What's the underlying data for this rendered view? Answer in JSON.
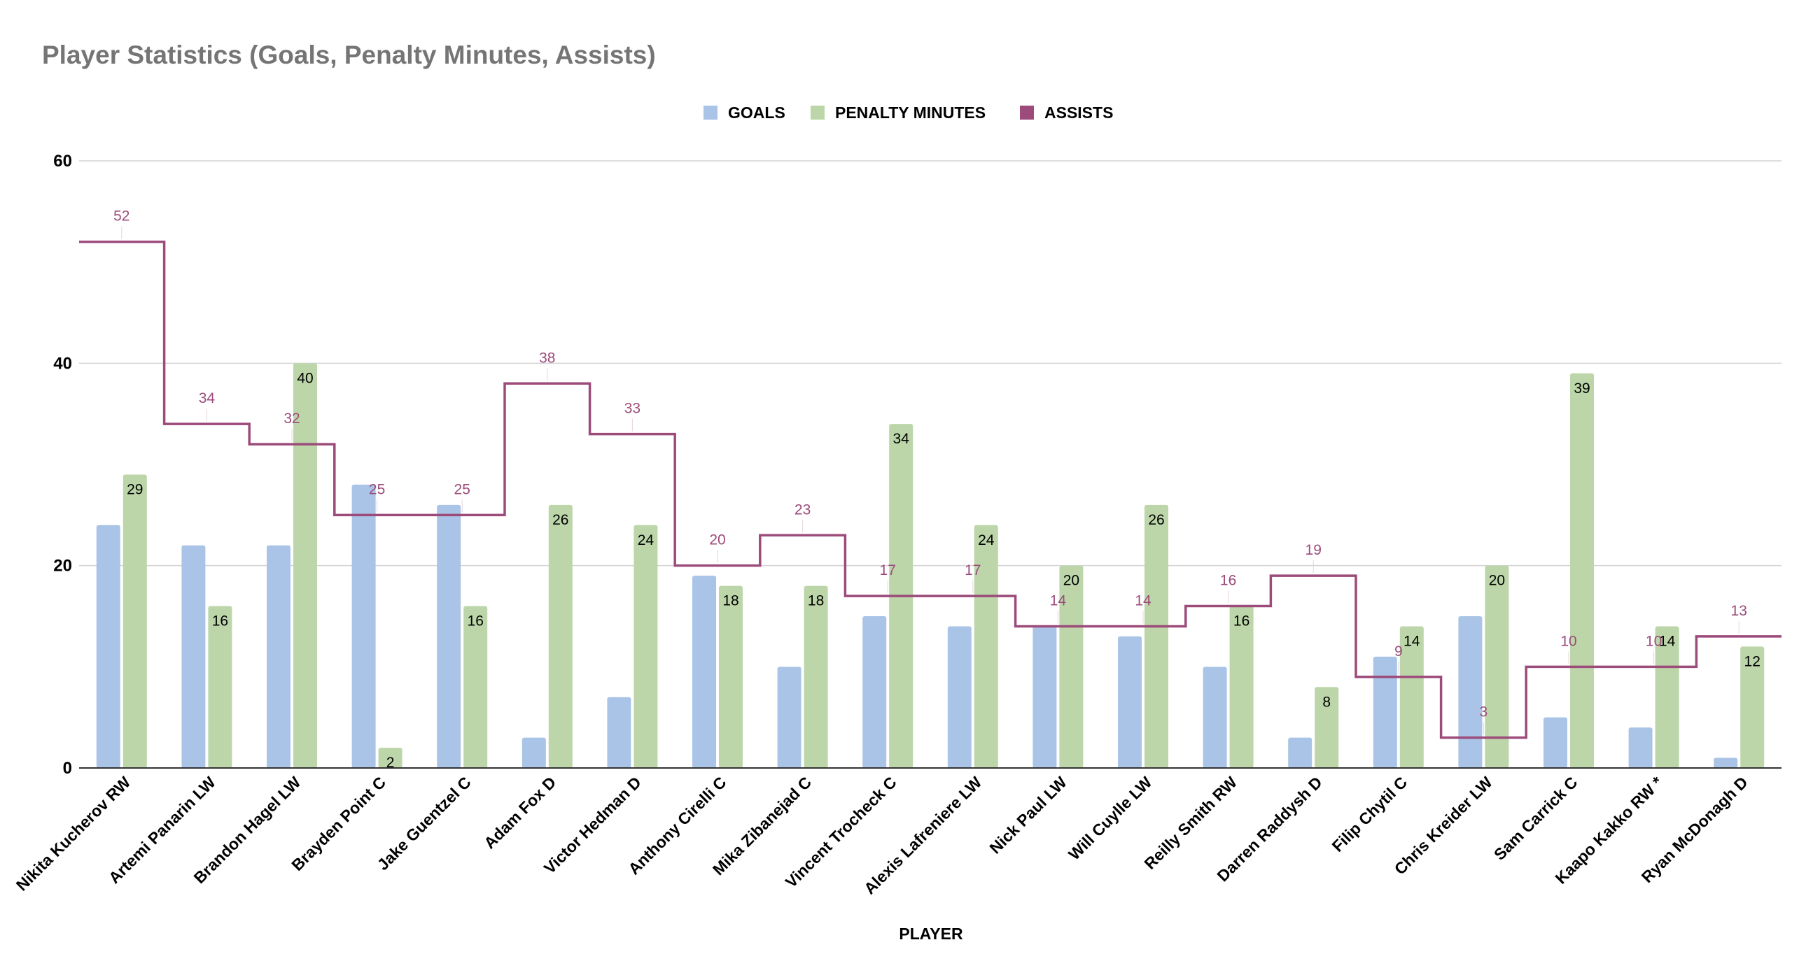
{
  "chart_data": {
    "type": "bar",
    "title": "Player Statistics (Goals, Penalty Minutes, Assists)",
    "xlabel": "PLAYER",
    "ylabel": "",
    "ylim": [
      0,
      60
    ],
    "yticks": [
      0,
      20,
      40,
      60
    ],
    "grid": true,
    "legend_position": "top-center",
    "categories": [
      "Nikita Kucherov RW",
      "Artemi Panarin LW",
      "Brandon Hagel LW",
      "Brayden Point C",
      "Jake Guentzel C",
      "Adam Fox D",
      "Victor Hedman D",
      "Anthony Cirelli C",
      "Mika Zibanejad C",
      "Vincent Trocheck C",
      "Alexis Lafreniere LW",
      "Nick Paul LW",
      "Will Cuylle LW",
      "Reilly Smith RW",
      "Darren Raddysh D",
      "Filip Chytil C",
      "Chris Kreider LW",
      "Sam Carrick C",
      "Kaapo Kakko RW *",
      "Ryan McDonagh D"
    ],
    "series": [
      {
        "name": "GOALS",
        "type": "bar",
        "color": "#a9c4e6",
        "show_labels": false,
        "values": [
          24,
          22,
          22,
          28,
          26,
          3,
          7,
          19,
          10,
          15,
          14,
          14,
          13,
          10,
          3,
          11,
          15,
          5,
          4,
          1
        ]
      },
      {
        "name": "PENALTY MINUTES",
        "type": "bar",
        "color": "#bcd6a9",
        "show_labels": true,
        "values": [
          29,
          16,
          40,
          2,
          16,
          26,
          24,
          18,
          18,
          34,
          24,
          20,
          26,
          16,
          8,
          14,
          20,
          39,
          14,
          12
        ]
      },
      {
        "name": "ASSISTS",
        "type": "line",
        "line_style": "stepped",
        "color": "#9c4b7a",
        "show_labels": true,
        "values": [
          52,
          34,
          32,
          25,
          25,
          38,
          33,
          20,
          23,
          17,
          17,
          14,
          14,
          16,
          19,
          9,
          3,
          10,
          10,
          13
        ]
      }
    ]
  }
}
